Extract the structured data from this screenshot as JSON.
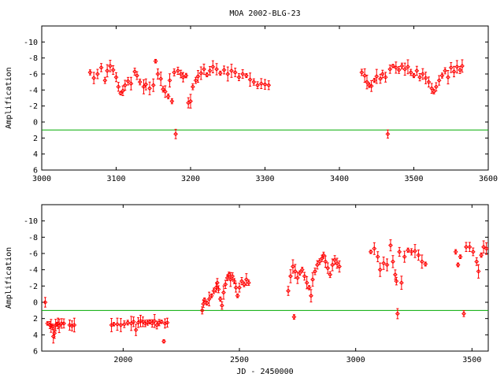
{
  "chart_data": [
    {
      "type": "scatter",
      "title": "MOA 2002-BLG-23",
      "xlabel": "",
      "ylabel": "Amplification",
      "xlim": [
        3000,
        3600
      ],
      "ylim": [
        6,
        -12
      ],
      "y_inverted": true,
      "xticks": [
        "3000",
        "3100",
        "3200",
        "3300",
        "3400",
        "3500",
        "3600"
      ],
      "yticks": [
        "-10",
        "-8",
        "-6",
        "-4",
        "-2",
        "0",
        "2",
        "4",
        "6"
      ],
      "reference_line": {
        "y": 1.0,
        "color": "#00aa00"
      },
      "series": [
        {
          "color": "#ff0000",
          "marker": "diamond-with-errorbars",
          "points": [
            [
              3065,
              -6.2
            ],
            [
              3070,
              -5.5
            ],
            [
              3075,
              -6.0
            ],
            [
              3080,
              -6.8
            ],
            [
              3085,
              -5.2
            ],
            [
              3088,
              -6.4
            ],
            [
              3092,
              -7.0
            ],
            [
              3096,
              -6.5
            ],
            [
              3100,
              -5.6
            ],
            [
              3103,
              -4.4
            ],
            [
              3106,
              -3.6
            ],
            [
              3109,
              -3.9
            ],
            [
              3112,
              -4.6
            ],
            [
              3116,
              -5.1
            ],
            [
              3120,
              -4.8
            ],
            [
              3125,
              -6.3
            ],
            [
              3128,
              -5.8
            ],
            [
              3132,
              -5.0
            ],
            [
              3137,
              -4.4
            ],
            [
              3140,
              -4.7
            ],
            [
              3145,
              -4.2
            ],
            [
              3150,
              -4.6
            ],
            [
              3153,
              -7.6
            ],
            [
              3156,
              -6.0
            ],
            [
              3160,
              -5.4
            ],
            [
              3163,
              -4.1
            ],
            [
              3166,
              -3.8
            ],
            [
              3170,
              -3.2
            ],
            [
              3172,
              -5.2
            ],
            [
              3175,
              -2.6
            ],
            [
              3178,
              -6.2
            ],
            [
              3180,
              1.5
            ],
            [
              3183,
              -6.4
            ],
            [
              3187,
              -6.0
            ],
            [
              3190,
              -5.6
            ],
            [
              3194,
              -5.8
            ],
            [
              3197,
              -2.4
            ],
            [
              3200,
              -2.6
            ],
            [
              3203,
              -4.4
            ],
            [
              3207,
              -5.2
            ],
            [
              3210,
              -5.7
            ],
            [
              3214,
              -6.1
            ],
            [
              3218,
              -6.6
            ],
            [
              3222,
              -5.9
            ],
            [
              3226,
              -6.4
            ],
            [
              3230,
              -6.9
            ],
            [
              3235,
              -6.6
            ],
            [
              3240,
              -6.1
            ],
            [
              3245,
              -6.5
            ],
            [
              3250,
              -6.0
            ],
            [
              3255,
              -6.4
            ],
            [
              3260,
              -6.2
            ],
            [
              3265,
              -5.6
            ],
            [
              3270,
              -6.0
            ],
            [
              3275,
              -5.8
            ],
            [
              3280,
              -5.3
            ],
            [
              3285,
              -5.0
            ],
            [
              3290,
              -4.6
            ],
            [
              3295,
              -4.8
            ],
            [
              3300,
              -4.7
            ],
            [
              3305,
              -4.6
            ],
            [
              3430,
              -6.2
            ],
            [
              3434,
              -5.8
            ],
            [
              3437,
              -5.0
            ],
            [
              3440,
              -4.6
            ],
            [
              3443,
              -4.5
            ],
            [
              3447,
              -5.2
            ],
            [
              3450,
              -5.7
            ],
            [
              3455,
              -5.4
            ],
            [
              3458,
              -6.0
            ],
            [
              3462,
              -5.6
            ],
            [
              3465,
              1.5
            ],
            [
              3468,
              -6.6
            ],
            [
              3472,
              -7.0
            ],
            [
              3476,
              -6.8
            ],
            [
              3480,
              -6.5
            ],
            [
              3484,
              -7.0
            ],
            [
              3488,
              -6.6
            ],
            [
              3492,
              -6.9
            ],
            [
              3496,
              -6.2
            ],
            [
              3500,
              -5.8
            ],
            [
              3504,
              -6.4
            ],
            [
              3508,
              -5.6
            ],
            [
              3512,
              -6.0
            ],
            [
              3516,
              -5.5
            ],
            [
              3520,
              -5.0
            ],
            [
              3524,
              -4.2
            ],
            [
              3527,
              -3.8
            ],
            [
              3530,
              -4.4
            ],
            [
              3534,
              -5.2
            ],
            [
              3538,
              -5.8
            ],
            [
              3542,
              -6.4
            ],
            [
              3546,
              -5.6
            ],
            [
              3550,
              -6.8
            ],
            [
              3554,
              -6.3
            ],
            [
              3558,
              -6.9
            ],
            [
              3562,
              -6.5
            ],
            [
              3565,
              -7.0
            ]
          ]
        }
      ]
    },
    {
      "type": "scatter",
      "title": "",
      "xlabel": "JD - 2450000",
      "ylabel": "Amplification",
      "xlim": [
        1650,
        3570
      ],
      "ylim": [
        6,
        -12
      ],
      "y_inverted": true,
      "xticks": [
        "2000",
        "2500",
        "3000",
        "3500"
      ],
      "yticks": [
        "-10",
        "-8",
        "-6",
        "-4",
        "-2",
        "0",
        "2",
        "4",
        "6"
      ],
      "reference_line": {
        "y": 1.0,
        "color": "#00aa00"
      },
      "series": [
        {
          "color": "#ff0000",
          "marker": "diamond-with-errorbars",
          "points": [
            [
              1665,
              0.0
            ],
            [
              1675,
              2.6
            ],
            [
              1685,
              2.8
            ],
            [
              1690,
              2.9
            ],
            [
              1697,
              3.0
            ],
            [
              1700,
              4.2
            ],
            [
              1705,
              3.8
            ],
            [
              1710,
              2.8
            ],
            [
              1715,
              2.7
            ],
            [
              1720,
              2.6
            ],
            [
              1725,
              2.9
            ],
            [
              1735,
              2.6
            ],
            [
              1745,
              2.6
            ],
            [
              1770,
              2.8
            ],
            [
              1780,
              2.9
            ],
            [
              1790,
              2.8
            ],
            [
              1950,
              2.8
            ],
            [
              1960,
              2.7
            ],
            [
              1975,
              2.7
            ],
            [
              1990,
              2.8
            ],
            [
              2005,
              2.7
            ],
            [
              2020,
              2.5
            ],
            [
              2035,
              2.6
            ],
            [
              2045,
              2.4
            ],
            [
              2055,
              3.4
            ],
            [
              2065,
              2.5
            ],
            [
              2075,
              2.3
            ],
            [
              2085,
              2.4
            ],
            [
              2095,
              2.6
            ],
            [
              2105,
              2.5
            ],
            [
              2115,
              2.4
            ],
            [
              2125,
              2.6
            ],
            [
              2135,
              2.3
            ],
            [
              2145,
              2.8
            ],
            [
              2155,
              2.5
            ],
            [
              2165,
              2.4
            ],
            [
              2175,
              4.8
            ],
            [
              2180,
              2.6
            ],
            [
              2190,
              2.5
            ],
            [
              2340,
              1.0
            ],
            [
              2345,
              0.2
            ],
            [
              2350,
              -0.3
            ],
            [
              2360,
              0.1
            ],
            [
              2370,
              -0.4
            ],
            [
              2380,
              -0.8
            ],
            [
              2390,
              -1.4
            ],
            [
              2400,
              -1.8
            ],
            [
              2405,
              -2.4
            ],
            [
              2410,
              -1.6
            ],
            [
              2418,
              -0.4
            ],
            [
              2425,
              0.4
            ],
            [
              2432,
              -1.2
            ],
            [
              2440,
              -2.2
            ],
            [
              2448,
              -3.0
            ],
            [
              2455,
              -3.4
            ],
            [
              2462,
              -2.8
            ],
            [
              2470,
              -3.2
            ],
            [
              2478,
              -2.6
            ],
            [
              2485,
              -1.8
            ],
            [
              2492,
              -0.8
            ],
            [
              2500,
              -1.8
            ],
            [
              2510,
              -2.6
            ],
            [
              2520,
              -2.2
            ],
            [
              2530,
              -2.8
            ],
            [
              2540,
              -2.4
            ],
            [
              2710,
              -1.4
            ],
            [
              2720,
              -3.2
            ],
            [
              2730,
              -4.4
            ],
            [
              2735,
              1.8
            ],
            [
              2740,
              -3.8
            ],
            [
              2750,
              -3.0
            ],
            [
              2760,
              -3.6
            ],
            [
              2770,
              -4.0
            ],
            [
              2780,
              -3.2
            ],
            [
              2790,
              -2.4
            ],
            [
              2800,
              -1.8
            ],
            [
              2808,
              -0.8
            ],
            [
              2815,
              -2.8
            ],
            [
              2825,
              -3.8
            ],
            [
              2835,
              -4.6
            ],
            [
              2845,
              -5.0
            ],
            [
              2855,
              -5.4
            ],
            [
              2862,
              -5.8
            ],
            [
              2870,
              -5.0
            ],
            [
              2880,
              -4.2
            ],
            [
              2890,
              -3.4
            ],
            [
              2900,
              -4.6
            ],
            [
              2910,
              -5.2
            ],
            [
              2920,
              -4.8
            ],
            [
              2930,
              -4.4
            ],
            [
              3065,
              -6.2
            ],
            [
              3080,
              -6.6
            ],
            [
              3095,
              -5.6
            ],
            [
              3105,
              -4.0
            ],
            [
              3120,
              -4.8
            ],
            [
              3135,
              -4.6
            ],
            [
              3150,
              -7.0
            ],
            [
              3160,
              -5.0
            ],
            [
              3170,
              -3.4
            ],
            [
              3175,
              -2.6
            ],
            [
              3180,
              1.4
            ],
            [
              3188,
              -6.2
            ],
            [
              3197,
              -2.4
            ],
            [
              3210,
              -5.6
            ],
            [
              3225,
              -6.4
            ],
            [
              3240,
              -6.2
            ],
            [
              3255,
              -6.3
            ],
            [
              3270,
              -5.8
            ],
            [
              3285,
              -5.0
            ],
            [
              3300,
              -4.7
            ],
            [
              3430,
              -6.2
            ],
            [
              3440,
              -4.6
            ],
            [
              3450,
              -5.6
            ],
            [
              3465,
              1.4
            ],
            [
              3475,
              -6.8
            ],
            [
              3490,
              -6.8
            ],
            [
              3505,
              -6.2
            ],
            [
              3520,
              -5.0
            ],
            [
              3528,
              -3.8
            ],
            [
              3540,
              -5.8
            ],
            [
              3550,
              -6.8
            ],
            [
              3562,
              -6.6
            ]
          ]
        }
      ]
    }
  ]
}
